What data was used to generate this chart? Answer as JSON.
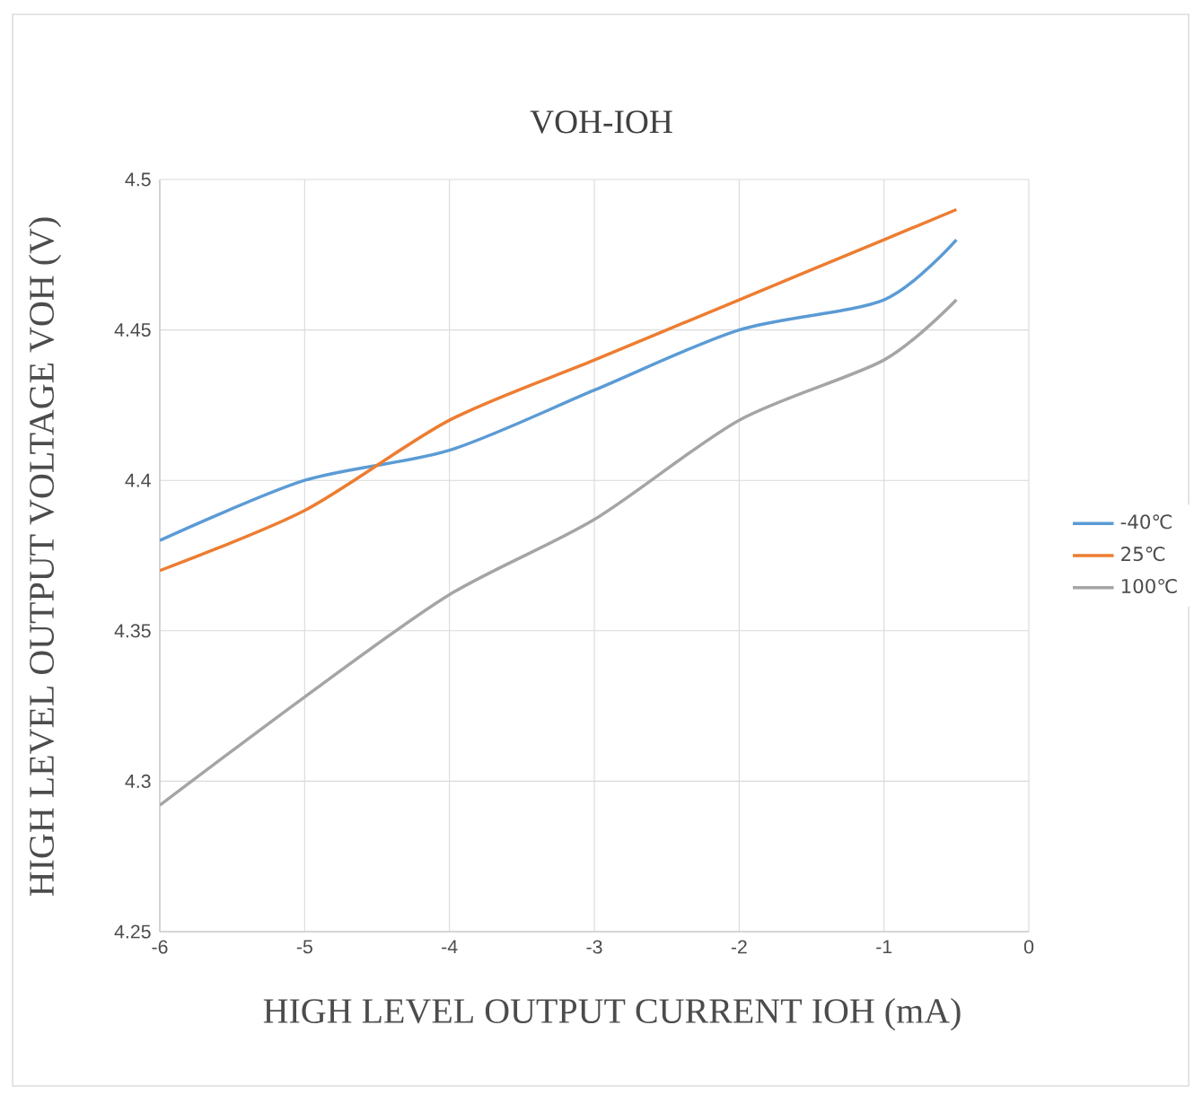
{
  "chart_data": {
    "type": "line",
    "title": "VOH-IOH",
    "xlabel": "HIGH LEVEL OUTPUT CURRENT IOH (mA)",
    "ylabel": "HIGH LEVEL OUTPUT VOLTAGE VOH (V)",
    "x": [
      -6,
      -5,
      -4,
      -3,
      -2,
      -1,
      -0.5
    ],
    "series": [
      {
        "name": "-40℃",
        "color": "#5b9bd5",
        "values": [
          4.38,
          4.4,
          4.41,
          4.43,
          4.45,
          4.46,
          4.48
        ]
      },
      {
        "name": "25℃",
        "color": "#ed7d31",
        "values": [
          4.37,
          4.39,
          4.42,
          4.44,
          4.46,
          4.48,
          4.49
        ]
      },
      {
        "name": "100℃",
        "color": "#a5a5a5",
        "values": [
          4.292,
          4.328,
          4.362,
          4.387,
          4.42,
          4.44,
          4.46
        ]
      }
    ],
    "xlim": [
      -6,
      0
    ],
    "ylim": [
      4.25,
      4.5
    ],
    "xticks": [
      -6,
      -5,
      -4,
      -3,
      -2,
      -1,
      0
    ],
    "yticks": [
      4.25,
      4.3,
      4.35,
      4.4,
      4.45,
      4.5
    ],
    "grid": true,
    "legend": "right",
    "marker": "none",
    "line_style": "solid"
  }
}
